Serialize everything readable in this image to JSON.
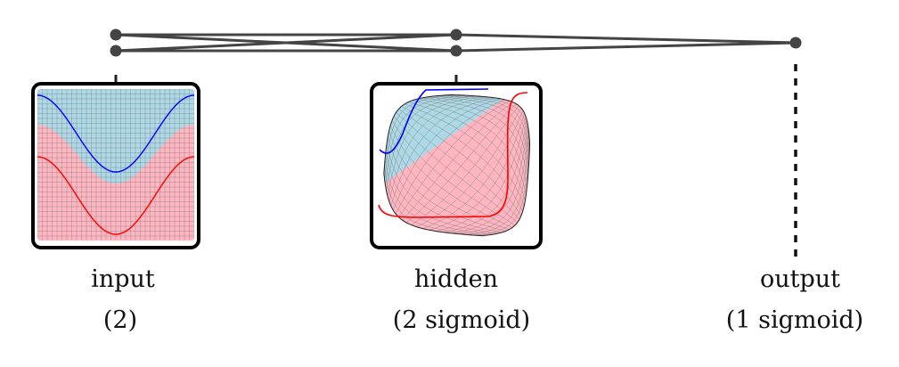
{
  "layers": [
    {
      "id": "input",
      "name": "input",
      "detail": "(2)"
    },
    {
      "id": "hidden",
      "name": "hidden",
      "detail": "(2 sigmoid)"
    },
    {
      "id": "output",
      "name": "output",
      "detail": "(1 sigmoid)"
    }
  ],
  "colors": {
    "line": "#444444",
    "region_top": "#add8e6",
    "region_bottom": "#ffb6c1",
    "curve_blue": "#0000ff",
    "curve_red": "#ff0000",
    "grid": "#777777"
  }
}
